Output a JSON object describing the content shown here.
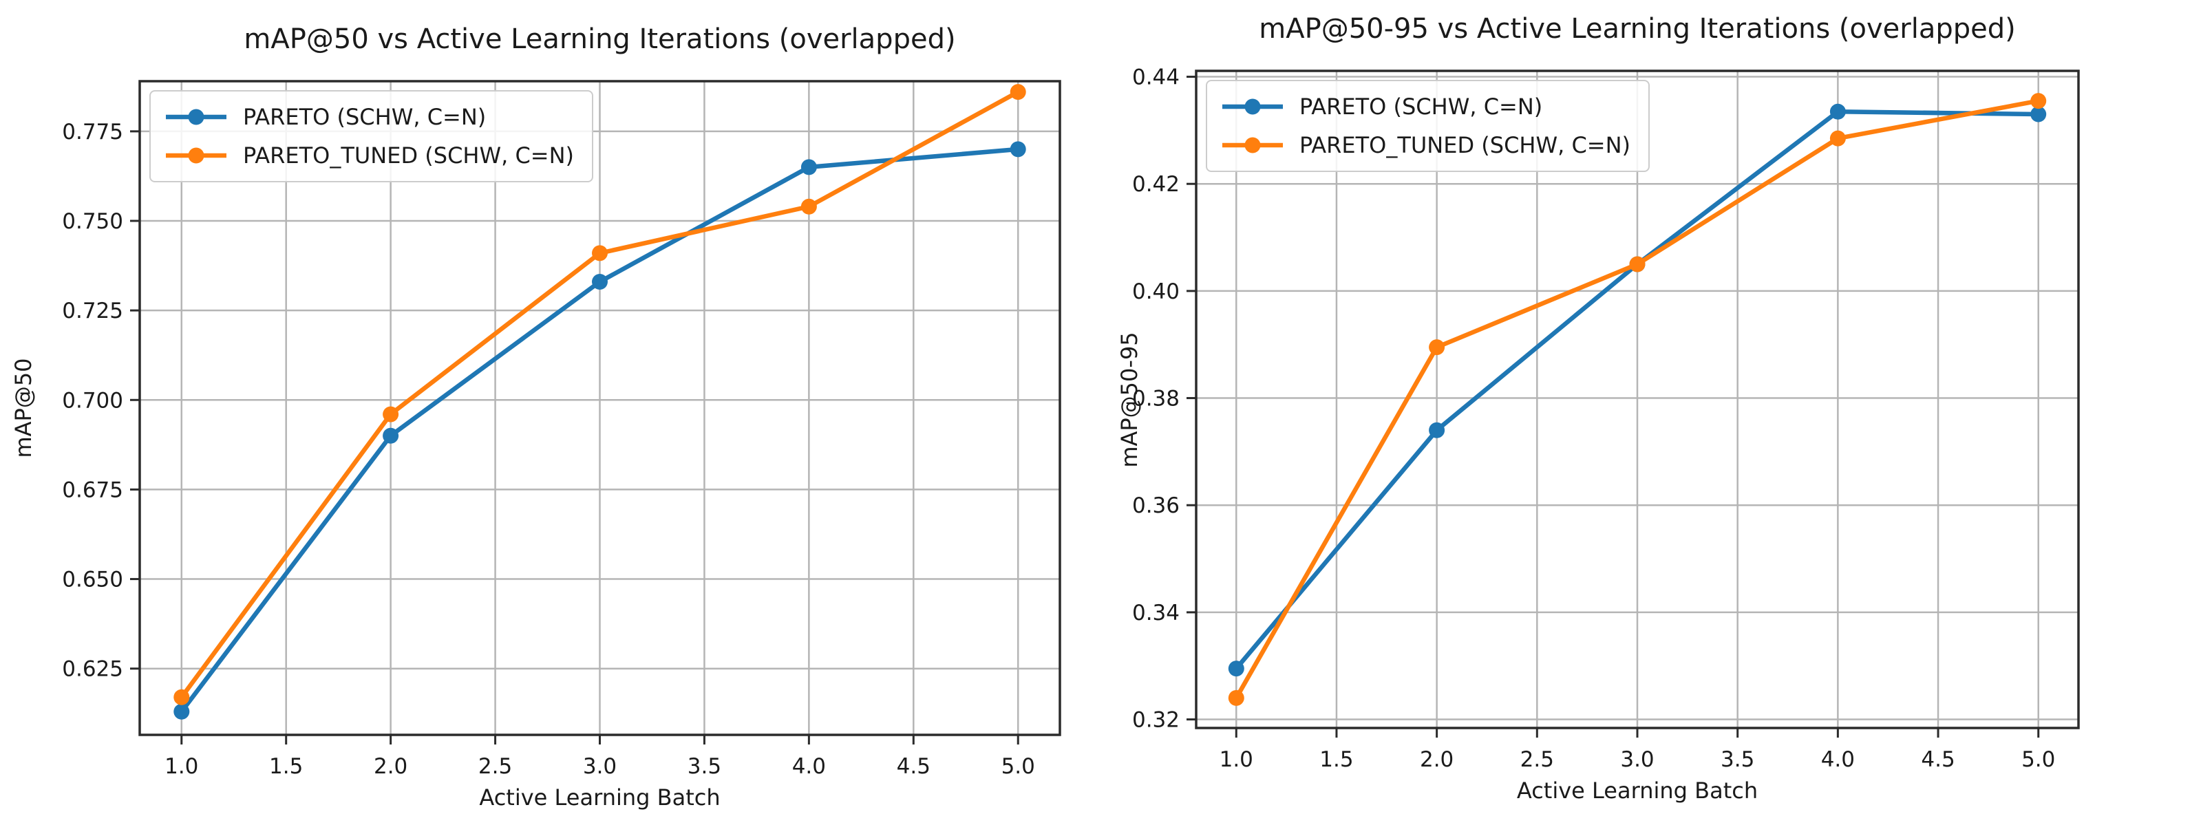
{
  "page": {
    "background": "#ffffff"
  },
  "colors": {
    "grid": "#b5b5b5",
    "spine": "#2b2b2b",
    "text": "#1a1a1a",
    "tick": "#2b2b2b",
    "legend_border": "#cccccc",
    "series_blue": "#1f77b4",
    "series_orange": "#ff7f0e"
  },
  "chart_data": [
    {
      "type": "line",
      "title": "mAP@50 vs Active Learning Iterations (overlapped)",
      "xlabel": "Active Learning Batch",
      "ylabel": "mAP@50",
      "x": [
        1,
        2,
        3,
        4,
        5
      ],
      "series": [
        {
          "name": "PARETO (SCHW, C=N)",
          "color": "#1f77b4",
          "values": [
            0.613,
            0.69,
            0.733,
            0.765,
            0.77
          ]
        },
        {
          "name": "PARETO_TUNED (SCHW, C=N)",
          "color": "#ff7f0e",
          "values": [
            0.617,
            0.696,
            0.741,
            0.754,
            0.786
          ]
        }
      ],
      "xlim": [
        0.8,
        5.2
      ],
      "ylim": [
        0.6065,
        0.789
      ],
      "xticklabels": [
        "1.0",
        "1.5",
        "2.0",
        "2.5",
        "3.0",
        "3.5",
        "4.0",
        "4.5",
        "5.0"
      ],
      "yticklabels": [
        "0.625",
        "0.650",
        "0.675",
        "0.700",
        "0.725",
        "0.750",
        "0.775"
      ],
      "grid": true,
      "legend_position": "upper-left"
    },
    {
      "type": "line",
      "title": "mAP@50-95 vs Active Learning Iterations (overlapped)",
      "xlabel": "Active Learning Batch",
      "ylabel": "mAP@50-95",
      "x": [
        1,
        2,
        3,
        4,
        5
      ],
      "series": [
        {
          "name": "PARETO (SCHW, C=N)",
          "color": "#1f77b4",
          "values": [
            0.3295,
            0.374,
            0.405,
            0.4335,
            0.433
          ]
        },
        {
          "name": "PARETO_TUNED (SCHW, C=N)",
          "color": "#ff7f0e",
          "values": [
            0.324,
            0.3895,
            0.405,
            0.4285,
            0.4355
          ]
        }
      ],
      "xlim": [
        0.8,
        5.2
      ],
      "ylim": [
        0.3184,
        0.4411
      ],
      "xticklabels": [
        "1.0",
        "1.5",
        "2.0",
        "2.5",
        "3.0",
        "3.5",
        "4.0",
        "4.5",
        "5.0"
      ],
      "yticklabels": [
        "0.32",
        "0.34",
        "0.36",
        "0.38",
        "0.40",
        "0.42",
        "0.44"
      ],
      "grid": true,
      "legend_position": "upper-left"
    }
  ]
}
